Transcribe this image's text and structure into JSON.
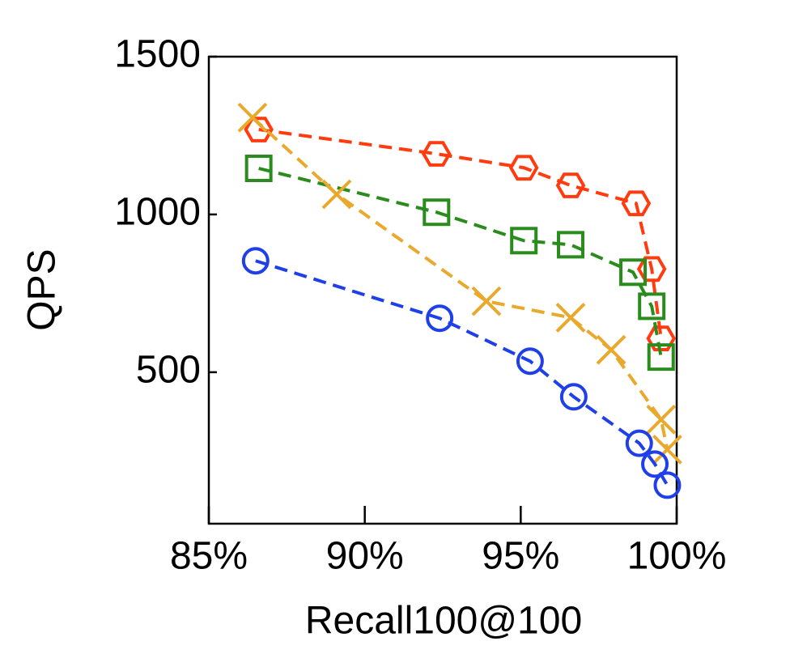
{
  "chart_data": {
    "type": "line",
    "x_label": "Recall100@100",
    "y_label": "QPS",
    "xlim": [
      85,
      100
    ],
    "ylim": [
      20,
      1500
    ],
    "xticks": [
      {
        "value": 85,
        "label": "85%"
      },
      {
        "value": 90,
        "label": "90%"
      },
      {
        "value": 95,
        "label": "95%"
      },
      {
        "value": 100,
        "label": "100%"
      }
    ],
    "yticks": [
      500,
      1000,
      1500
    ],
    "series": [
      {
        "color": "#ff3b0f",
        "marker": "hexagon",
        "x": [
          86.6,
          92.3,
          95.1,
          96.6,
          98.7,
          99.2,
          99.5
        ],
        "values": [
          1269,
          1192,
          1148,
          1092,
          1035,
          827,
          607
        ]
      },
      {
        "color": "#2a8c1c",
        "marker": "square",
        "x": [
          86.6,
          92.3,
          95.1,
          96.6,
          98.6,
          99.2,
          99.5
        ],
        "values": [
          1146,
          1007,
          917,
          904,
          817,
          709,
          548
        ]
      },
      {
        "color": "#e8a92c",
        "marker": "x",
        "x": [
          86.4,
          89.1,
          93.9,
          96.6,
          97.9,
          99.5,
          99.7
        ],
        "values": [
          1307,
          1064,
          725,
          673,
          571,
          350,
          255
        ]
      },
      {
        "color": "#1f3fe8",
        "marker": "circle",
        "x": [
          86.5,
          92.4,
          95.3,
          96.7,
          98.8,
          99.3,
          99.7
        ],
        "values": [
          853,
          671,
          535,
          422,
          275,
          209,
          142
        ]
      }
    ]
  }
}
